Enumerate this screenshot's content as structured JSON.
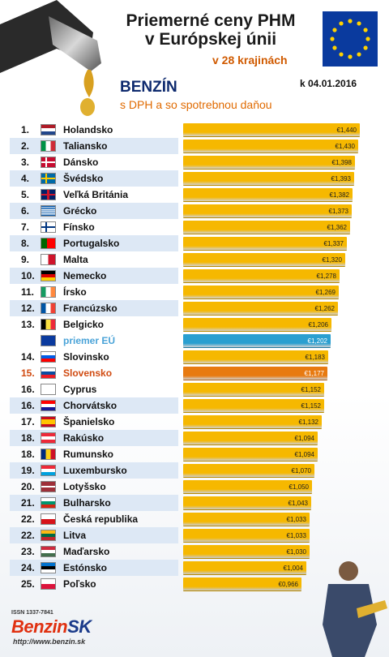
{
  "header": {
    "title_line1": "Priemerné ceny PHM",
    "title_line2": "v Európskej únii",
    "subtitle": "v 28 krajinách",
    "fuel": "BENZÍN",
    "tax_note": "s DPH a so spotrebnou daňou",
    "date": "k 04.01.2016"
  },
  "logo": {
    "issn": "ISSN 1337-7841",
    "brand_a": "Benzin",
    "brand_b": "SK",
    "url": "http://www.benzin.sk"
  },
  "colors": {
    "bar": "#f6b800",
    "eu_bar": "#2a9fd0",
    "sk_bar": "#e87a10",
    "sk_text": "#d04a10",
    "eu_text": "#4aa3d8",
    "row_alt": "#dde8f5"
  },
  "chart_data": {
    "type": "bar",
    "orientation": "horizontal",
    "title": "Priemerné ceny PHM v Európskej únii",
    "rows": [
      {
        "rank": "1.",
        "name": "Holandsko",
        "value": 1.44,
        "label": "€1,440",
        "flag": "nl"
      },
      {
        "rank": "2.",
        "name": "Taliansko",
        "value": 1.43,
        "label": "€1,430",
        "flag": "it"
      },
      {
        "rank": "3.",
        "name": "Dánsko",
        "value": 1.398,
        "label": "€1,398",
        "flag": "dk"
      },
      {
        "rank": "4.",
        "name": "Švédsko",
        "value": 1.393,
        "label": "€1,393",
        "flag": "se"
      },
      {
        "rank": "5.",
        "name": "Veľká Británia",
        "value": 1.382,
        "label": "€1,382",
        "flag": "gb"
      },
      {
        "rank": "6.",
        "name": "Grécko",
        "value": 1.373,
        "label": "€1,373",
        "flag": "gr"
      },
      {
        "rank": "7.",
        "name": "Fínsko",
        "value": 1.362,
        "label": "€1,362",
        "flag": "fi"
      },
      {
        "rank": "8.",
        "name": "Portugalsko",
        "value": 1.337,
        "label": "€1,337",
        "flag": "pt"
      },
      {
        "rank": "9.",
        "name": "Malta",
        "value": 1.32,
        "label": "€1,320",
        "flag": "mt"
      },
      {
        "rank": "10.",
        "name": "Nemecko",
        "value": 1.278,
        "label": "€1,278",
        "flag": "de"
      },
      {
        "rank": "11.",
        "name": "Írsko",
        "value": 1.269,
        "label": "€1,269",
        "flag": "ie"
      },
      {
        "rank": "12.",
        "name": "Francúzsko",
        "value": 1.262,
        "label": "€1,262",
        "flag": "fr"
      },
      {
        "rank": "13.",
        "name": "Belgicko",
        "value": 1.206,
        "label": "€1,206",
        "flag": "be"
      },
      {
        "rank": "",
        "name": "priemer EÚ",
        "value": 1.202,
        "label": "€1,202",
        "flag": "eu",
        "highlight": "eu"
      },
      {
        "rank": "14.",
        "name": "Slovinsko",
        "value": 1.183,
        "label": "€1,183",
        "flag": "si"
      },
      {
        "rank": "15.",
        "name": "Slovensko",
        "value": 1.177,
        "label": "€1,177",
        "flag": "sk",
        "highlight": "sk"
      },
      {
        "rank": "16.",
        "name": "Cyprus",
        "value": 1.152,
        "label": "€1,152",
        "flag": "cy"
      },
      {
        "rank": "16.",
        "name": "Chorvátsko",
        "value": 1.152,
        "label": "€1,152",
        "flag": "hr"
      },
      {
        "rank": "17.",
        "name": "Španielsko",
        "value": 1.132,
        "label": "€1,132",
        "flag": "es"
      },
      {
        "rank": "18.",
        "name": "Rakúsko",
        "value": 1.094,
        "label": "€1,094",
        "flag": "at"
      },
      {
        "rank": "18.",
        "name": "Rumunsko",
        "value": 1.094,
        "label": "€1,094",
        "flag": "ro"
      },
      {
        "rank": "19.",
        "name": "Luxembursko",
        "value": 1.07,
        "label": "€1,070",
        "flag": "lu"
      },
      {
        "rank": "20.",
        "name": "Lotyšsko",
        "value": 1.05,
        "label": "€1,050",
        "flag": "lv"
      },
      {
        "rank": "21.",
        "name": "Bulharsko",
        "value": 1.043,
        "label": "€1,043",
        "flag": "bg"
      },
      {
        "rank": "22.",
        "name": "Česká republika",
        "value": 1.033,
        "label": "€1,033",
        "flag": "cz"
      },
      {
        "rank": "22.",
        "name": "Litva",
        "value": 1.033,
        "label": "€1,033",
        "flag": "lt"
      },
      {
        "rank": "23.",
        "name": "Maďarsko",
        "value": 1.03,
        "label": "€1,030",
        "flag": "hu"
      },
      {
        "rank": "24.",
        "name": "Estónsko",
        "value": 1.004,
        "label": "€1,004",
        "flag": "ee"
      },
      {
        "rank": "25.",
        "name": "Poľsko",
        "value": 0.966,
        "label": "€0,966",
        "flag": "pl"
      }
    ],
    "value_range": [
      0,
      1.44
    ],
    "legend": "none"
  }
}
